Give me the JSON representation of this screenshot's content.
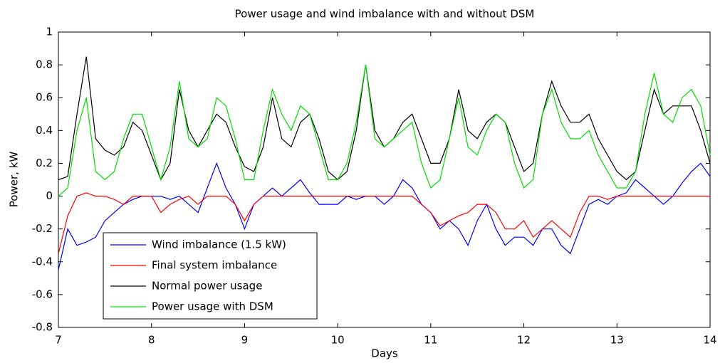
{
  "chart_data": {
    "type": "line",
    "title": "Power usage and wind imbalance with and without DSM",
    "x_label": "Days",
    "y_label": "Power, kW",
    "x": [
      7.0,
      7.1,
      7.2,
      7.3,
      7.4,
      7.5,
      7.6,
      7.7,
      7.8,
      7.9,
      8.0,
      8.1,
      8.2,
      8.3,
      8.4,
      8.5,
      8.6,
      8.7,
      8.8,
      8.9,
      9.0,
      9.1,
      9.2,
      9.3,
      9.4,
      9.5,
      9.6,
      9.7,
      9.8,
      9.9,
      10.0,
      10.1,
      10.2,
      10.3,
      10.4,
      10.5,
      10.6,
      10.7,
      10.8,
      10.9,
      11.0,
      11.1,
      11.2,
      11.3,
      11.4,
      11.5,
      11.6,
      11.7,
      11.8,
      11.9,
      12.0,
      12.1,
      12.2,
      12.3,
      12.4,
      12.5,
      12.6,
      12.7,
      12.8,
      12.9,
      13.0,
      13.1,
      13.2,
      13.3,
      13.4,
      13.5,
      13.6,
      13.7,
      13.8,
      13.9,
      14.0
    ],
    "series": [
      {
        "name": "Wind imbalance (1.5 kW)",
        "color": "#0000ff",
        "values": [
          -0.45,
          -0.2,
          -0.3,
          -0.28,
          -0.25,
          -0.15,
          -0.1,
          -0.05,
          -0.02,
          0,
          0,
          0,
          -0.02,
          0,
          -0.05,
          -0.1,
          0.05,
          0.2,
          0.05,
          -0.05,
          -0.2,
          -0.05,
          0,
          0.05,
          0,
          0.05,
          0.1,
          0.02,
          -0.05,
          -0.05,
          -0.05,
          0,
          -0.02,
          0,
          0,
          -0.05,
          0,
          0.1,
          0.05,
          -0.05,
          -0.1,
          -0.2,
          -0.15,
          -0.2,
          -0.3,
          -0.15,
          -0.05,
          -0.2,
          -0.3,
          -0.25,
          -0.25,
          -0.3,
          -0.2,
          -0.2,
          -0.3,
          -0.35,
          -0.2,
          -0.05,
          -0.02,
          -0.05,
          0,
          0.02,
          0.1,
          0.05,
          0,
          -0.05,
          0,
          0.08,
          0.15,
          0.2,
          0.12
        ]
      },
      {
        "name": "Final system imbalance",
        "color": "#ff0000",
        "values": [
          -0.35,
          -0.12,
          0,
          0.02,
          0,
          0,
          -0.02,
          -0.05,
          0,
          0,
          0,
          -0.1,
          -0.05,
          -0.02,
          0,
          -0.05,
          0,
          0,
          0,
          -0.05,
          -0.15,
          -0.05,
          0,
          0,
          0,
          0,
          0,
          0,
          0,
          0,
          0,
          0,
          0,
          0,
          0,
          0,
          0,
          0,
          0,
          -0.05,
          -0.1,
          -0.18,
          -0.15,
          -0.12,
          -0.1,
          -0.05,
          -0.05,
          -0.1,
          -0.2,
          -0.2,
          -0.15,
          -0.25,
          -0.2,
          -0.15,
          -0.2,
          -0.25,
          -0.1,
          0,
          0,
          -0.02,
          0,
          0,
          0,
          0,
          0,
          0,
          0,
          0,
          0,
          0,
          0
        ]
      },
      {
        "name": "Normal power usage",
        "color": "#000000",
        "values": [
          0.1,
          0.12,
          0.5,
          0.85,
          0.35,
          0.28,
          0.25,
          0.3,
          0.45,
          0.4,
          0.25,
          0.1,
          0.2,
          0.65,
          0.4,
          0.3,
          0.4,
          0.5,
          0.45,
          0.3,
          0.18,
          0.15,
          0.3,
          0.6,
          0.35,
          0.3,
          0.45,
          0.5,
          0.35,
          0.15,
          0.1,
          0.15,
          0.4,
          0.8,
          0.4,
          0.3,
          0.35,
          0.45,
          0.5,
          0.35,
          0.2,
          0.2,
          0.35,
          0.65,
          0.4,
          0.35,
          0.45,
          0.5,
          0.45,
          0.3,
          0.15,
          0.2,
          0.5,
          0.7,
          0.55,
          0.45,
          0.45,
          0.5,
          0.35,
          0.25,
          0.15,
          0.1,
          0.15,
          0.4,
          0.65,
          0.5,
          0.55,
          0.55,
          0.55,
          0.4,
          0.2
        ]
      },
      {
        "name": "Power usage with DSM",
        "color": "#00dd00",
        "values": [
          0,
          0.05,
          0.4,
          0.6,
          0.15,
          0.1,
          0.15,
          0.35,
          0.5,
          0.5,
          0.3,
          0.1,
          0.3,
          0.7,
          0.35,
          0.3,
          0.35,
          0.6,
          0.55,
          0.35,
          0.1,
          0.1,
          0.4,
          0.65,
          0.5,
          0.4,
          0.55,
          0.5,
          0.3,
          0.1,
          0.1,
          0.2,
          0.45,
          0.8,
          0.35,
          0.3,
          0.35,
          0.4,
          0.45,
          0.2,
          0.05,
          0.1,
          0.35,
          0.6,
          0.3,
          0.25,
          0.4,
          0.5,
          0.45,
          0.2,
          0.05,
          0.1,
          0.5,
          0.65,
          0.45,
          0.35,
          0.35,
          0.4,
          0.25,
          0.15,
          0.05,
          0.05,
          0.15,
          0.5,
          0.75,
          0.5,
          0.45,
          0.6,
          0.65,
          0.55,
          0.25
        ]
      }
    ],
    "xlim": [
      7,
      14
    ],
    "xticks": [
      7,
      8,
      9,
      10,
      11,
      12,
      13,
      14
    ],
    "ylim": [
      -0.8,
      1
    ],
    "yticks": [
      -0.8,
      -0.6,
      -0.4,
      -0.2,
      0,
      0.2,
      0.4,
      0.6,
      0.8,
      1
    ],
    "legend": "lower left",
    "grid": false
  }
}
